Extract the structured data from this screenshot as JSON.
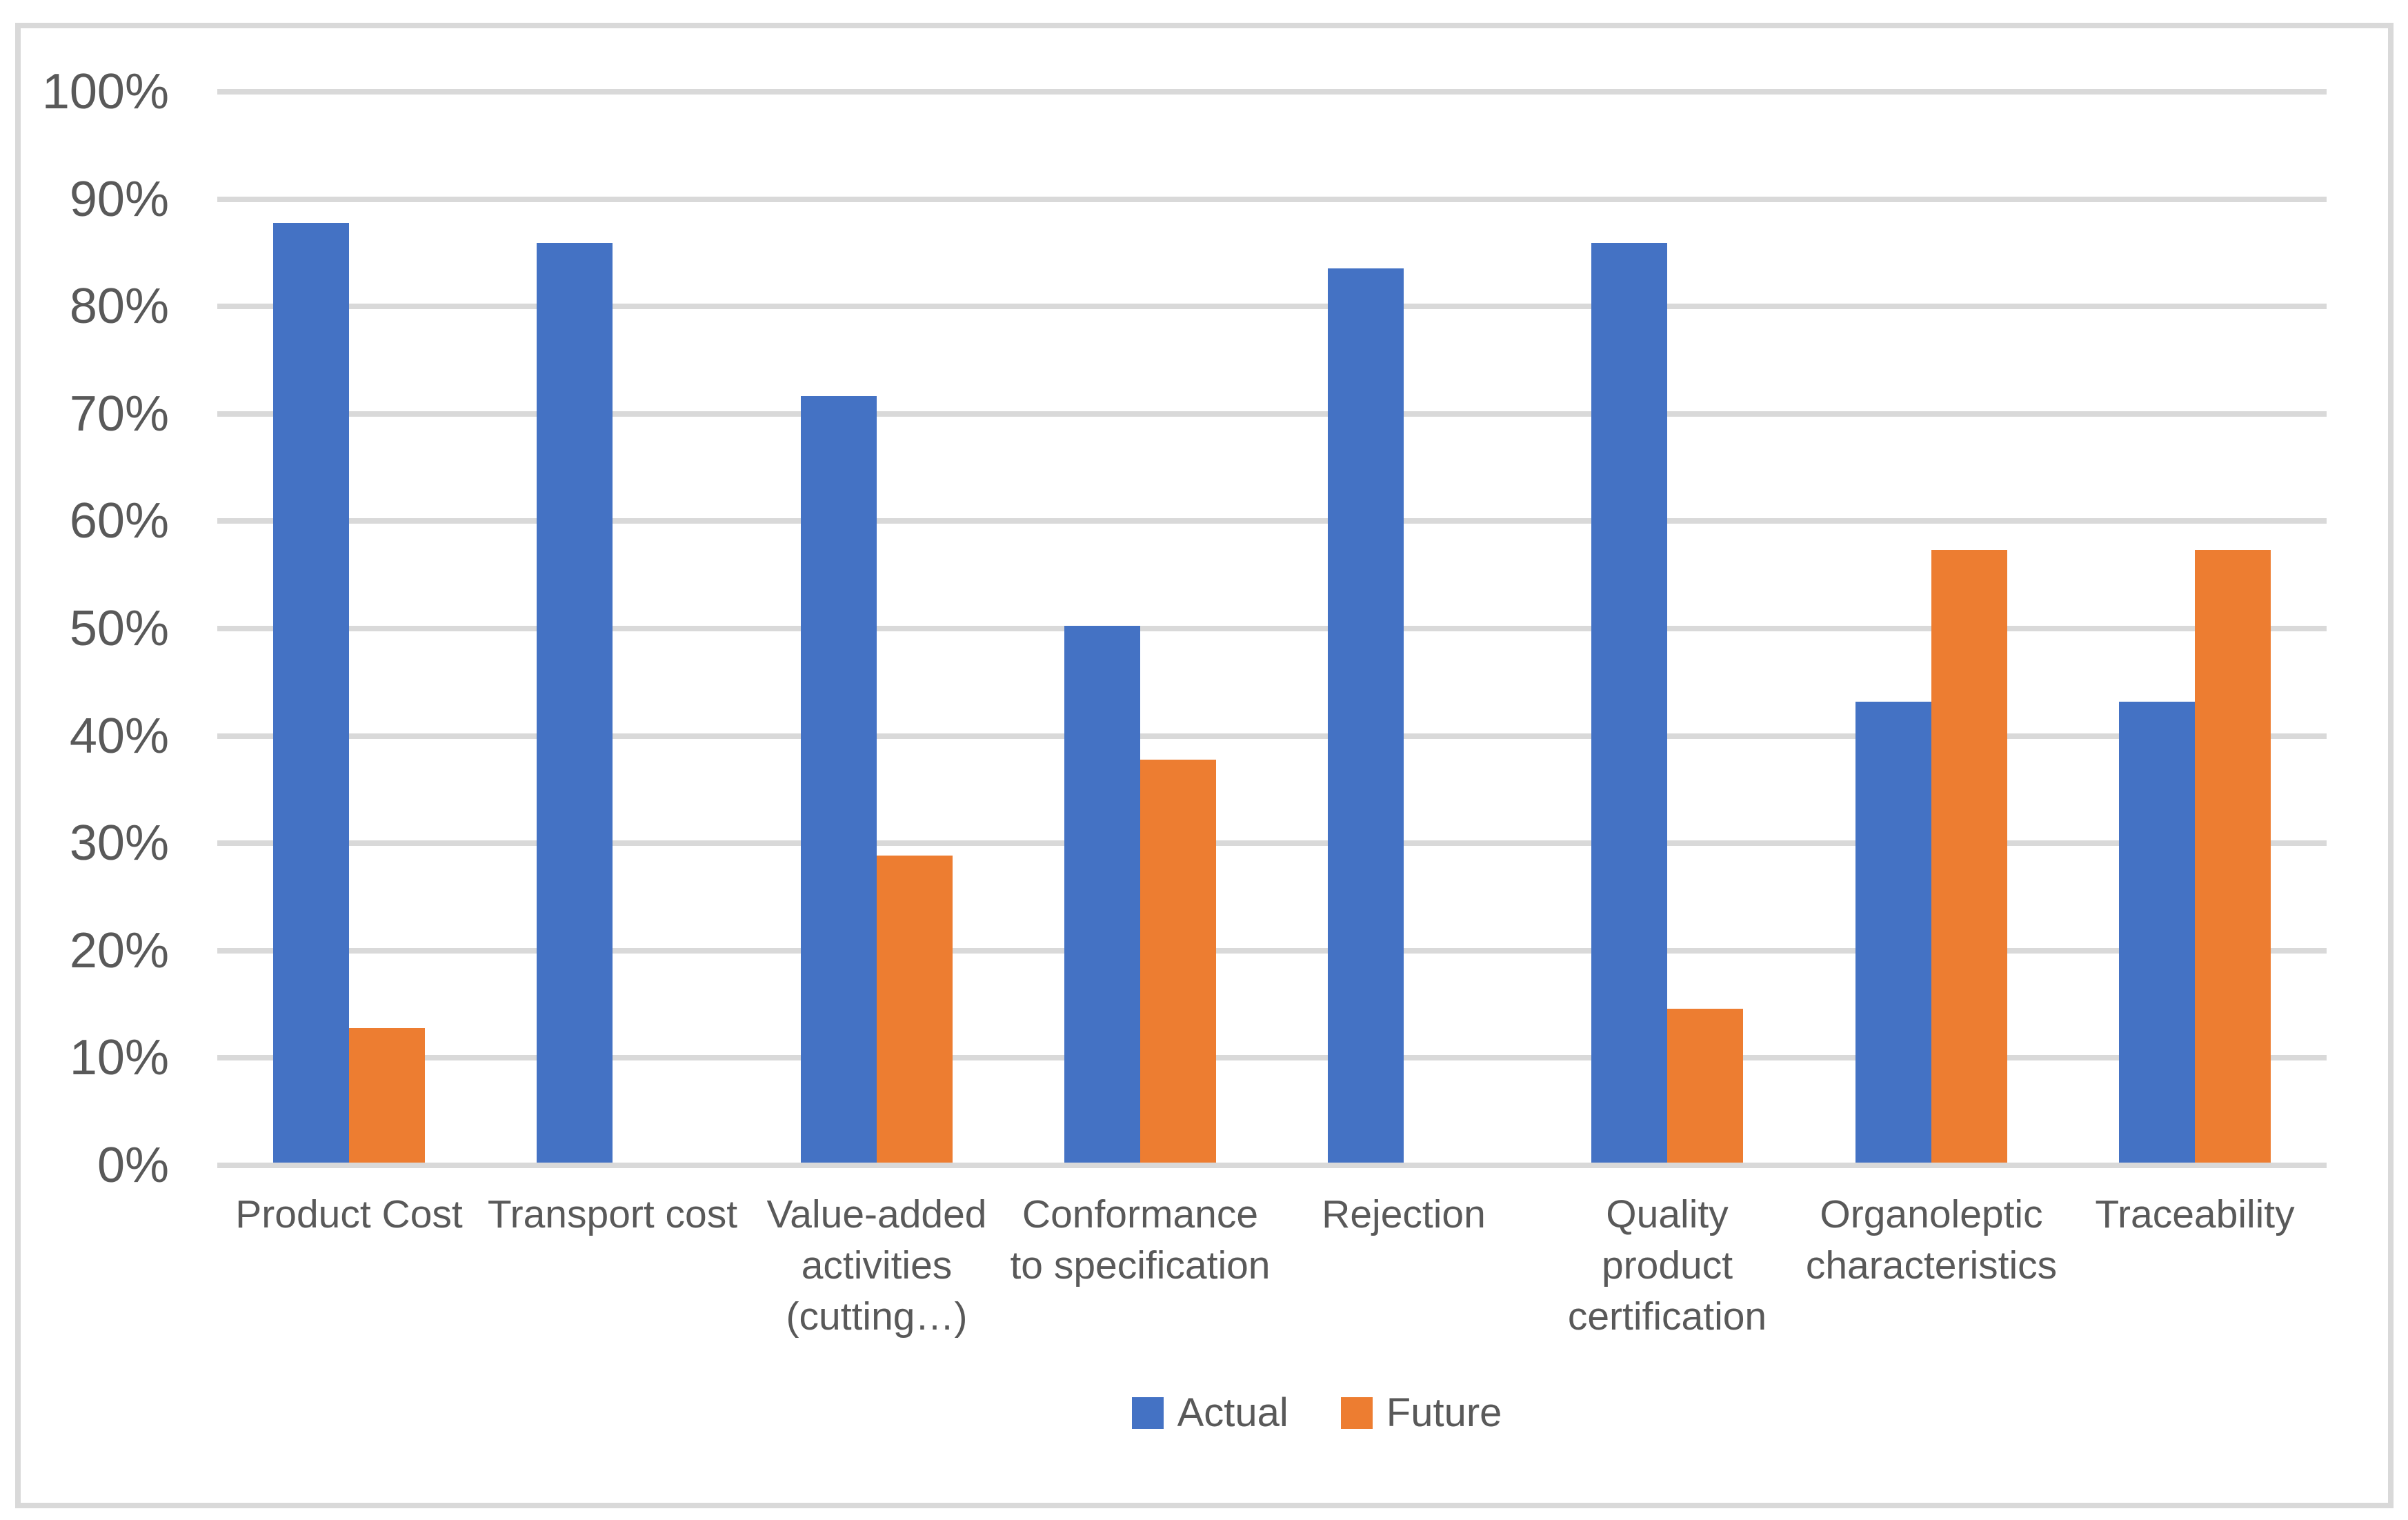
{
  "chart_data": {
    "type": "bar",
    "title": "",
    "xlabel": "",
    "ylabel": "",
    "grid": true,
    "legend_position": "bottom",
    "ylim": [
      0,
      100
    ],
    "y_ticks": [
      "0%",
      "10%",
      "20%",
      "30%",
      "40%",
      "50%",
      "60%",
      "70%",
      "80%",
      "90%",
      "100%"
    ],
    "categories": [
      [
        "Product Cost"
      ],
      [
        "Transport cost"
      ],
      [
        "Value-added",
        "activities",
        "(cutting…)"
      ],
      [
        "Conformance",
        "to specification"
      ],
      [
        "Rejection"
      ],
      [
        "Quality product",
        "certification"
      ],
      [
        "Organoleptic",
        "characteristics"
      ],
      [
        "Traceability"
      ]
    ],
    "series": [
      {
        "name": "Actual",
        "color": "#4472C4",
        "values": [
          87.5,
          85.7,
          71.4,
          50,
          83.3,
          85.7,
          42.9,
          42.9
        ]
      },
      {
        "name": "Future",
        "color": "#ED7D31",
        "values": [
          12.5,
          0,
          28.6,
          37.5,
          0,
          14.3,
          57.1,
          57.1
        ]
      }
    ]
  },
  "colors": {
    "grid": "#d9d9d9",
    "border": "#d9d9d9",
    "text": "#595959",
    "background": "#ffffff"
  }
}
